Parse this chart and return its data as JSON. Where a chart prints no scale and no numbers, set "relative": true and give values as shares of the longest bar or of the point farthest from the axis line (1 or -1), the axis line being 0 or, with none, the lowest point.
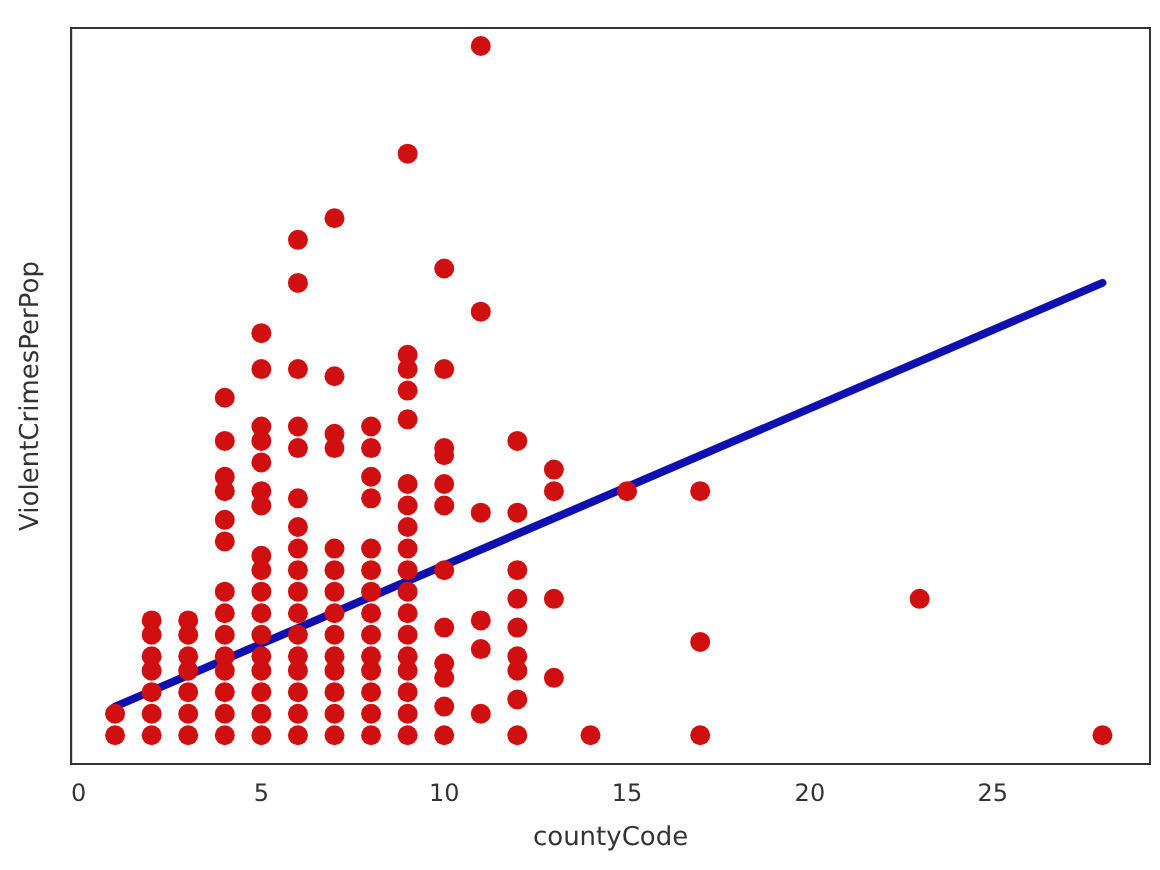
{
  "chart_data": {
    "type": "scatter",
    "xlabel": "countyCode",
    "ylabel": "ViolentCrimesPerPop",
    "relative": true,
    "xlim": [
      -0.2,
      29.3
    ],
    "xticks": [
      0,
      5,
      10,
      15,
      20,
      25
    ],
    "grid": false,
    "legend": false,
    "series": [
      {
        "type": "scatter",
        "marker": "circle",
        "color": "#d01010",
        "x": [
          1,
          1,
          2,
          2,
          2,
          2,
          2,
          2,
          2,
          3,
          3,
          3,
          3,
          3,
          3,
          3,
          4,
          4,
          4,
          4,
          4,
          4,
          4,
          4,
          4,
          4,
          4,
          4,
          4,
          4,
          5,
          5,
          5,
          5,
          5,
          5,
          5,
          5,
          5,
          5,
          5,
          5,
          5,
          5,
          5,
          5,
          5,
          6,
          6,
          6,
          6,
          6,
          6,
          6,
          6,
          6,
          6,
          6,
          6,
          6,
          6,
          6,
          6,
          6,
          7,
          7,
          7,
          7,
          7,
          7,
          7,
          7,
          7,
          7,
          7,
          7,
          7,
          7,
          8,
          8,
          8,
          8,
          8,
          8,
          8,
          8,
          8,
          8,
          8,
          8,
          8,
          8,
          9,
          9,
          9,
          9,
          9,
          9,
          9,
          9,
          9,
          9,
          9,
          9,
          9,
          9,
          9,
          9,
          9,
          9,
          10,
          10,
          10,
          10,
          10,
          10,
          10,
          10,
          10,
          10,
          10,
          10,
          11,
          11,
          11,
          11,
          11,
          11,
          12,
          12,
          12,
          12,
          12,
          12,
          12,
          12,
          12,
          13,
          13,
          13,
          13,
          14,
          15,
          17,
          17,
          17,
          23,
          28
        ],
        "values": [
          0.04,
          0.07,
          0.04,
          0.07,
          0.1,
          0.13,
          0.15,
          0.18,
          0.2,
          0.04,
          0.07,
          0.1,
          0.13,
          0.15,
          0.18,
          0.2,
          0.04,
          0.07,
          0.1,
          0.13,
          0.15,
          0.18,
          0.21,
          0.24,
          0.31,
          0.34,
          0.38,
          0.4,
          0.45,
          0.51,
          0.04,
          0.07,
          0.1,
          0.13,
          0.15,
          0.18,
          0.21,
          0.24,
          0.27,
          0.29,
          0.36,
          0.38,
          0.42,
          0.45,
          0.47,
          0.55,
          0.6,
          0.04,
          0.07,
          0.1,
          0.13,
          0.15,
          0.18,
          0.21,
          0.24,
          0.27,
          0.3,
          0.33,
          0.37,
          0.44,
          0.47,
          0.55,
          0.67,
          0.73,
          0.04,
          0.07,
          0.1,
          0.13,
          0.15,
          0.18,
          0.21,
          0.24,
          0.27,
          0.3,
          0.44,
          0.46,
          0.54,
          0.76,
          0.04,
          0.07,
          0.1,
          0.13,
          0.15,
          0.18,
          0.21,
          0.24,
          0.27,
          0.3,
          0.37,
          0.4,
          0.44,
          0.47,
          0.04,
          0.07,
          0.1,
          0.13,
          0.15,
          0.18,
          0.21,
          0.24,
          0.27,
          0.3,
          0.33,
          0.36,
          0.39,
          0.48,
          0.52,
          0.55,
          0.57,
          0.85,
          0.04,
          0.08,
          0.12,
          0.14,
          0.19,
          0.27,
          0.36,
          0.39,
          0.43,
          0.44,
          0.55,
          0.69,
          0.07,
          0.16,
          0.2,
          0.35,
          0.63,
          1,
          0.04,
          0.09,
          0.13,
          0.15,
          0.19,
          0.23,
          0.27,
          0.35,
          0.45,
          0.12,
          0.23,
          0.38,
          0.41,
          0.04,
          0.38,
          0.04,
          0.17,
          0.38,
          0.23,
          0.04
        ]
      },
      {
        "type": "line",
        "marker": "none",
        "color": "#1010b0",
        "x": [
          1,
          28
        ],
        "values": [
          0.08,
          0.67
        ]
      }
    ]
  }
}
